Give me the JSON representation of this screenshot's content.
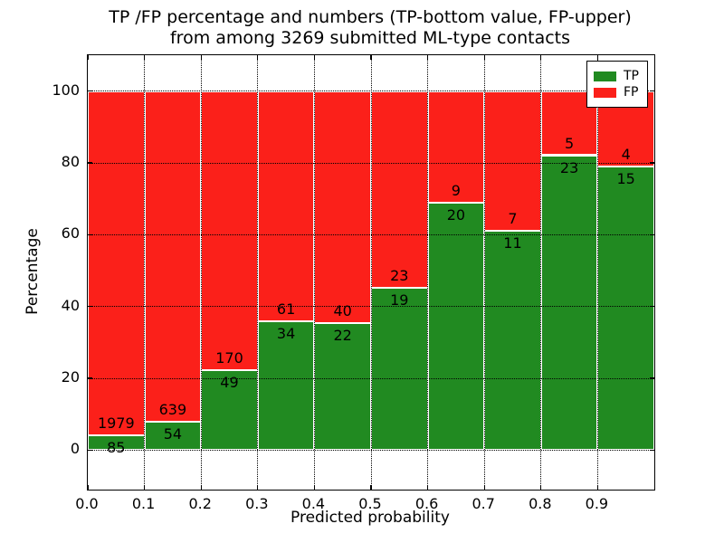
{
  "chart_data": {
    "type": "bar",
    "stacked": true,
    "title_lines": [
      "TP /FP percentage and numbers (TP-bottom value, FP-upper)",
      "from among 3269 submitted ML-type contacts"
    ],
    "total_contacts": 3269,
    "xlabel": "Predicted probability",
    "ylabel": "Percentage",
    "bins": [
      "0.0-0.1",
      "0.1-0.2",
      "0.2-0.3",
      "0.3-0.4",
      "0.4-0.5",
      "0.5-0.6",
      "0.6-0.7",
      "0.7-0.8",
      "0.8-0.9",
      "0.9-1.0"
    ],
    "series": [
      {
        "name": "TP",
        "color": "#218a21",
        "values": [
          85,
          54,
          49,
          34,
          22,
          19,
          20,
          11,
          23,
          15
        ]
      },
      {
        "name": "FP",
        "color": "#fb201a",
        "values": [
          1979,
          639,
          170,
          61,
          40,
          23,
          9,
          7,
          5,
          4
        ]
      }
    ],
    "tp_percentages": [
      4.1,
      7.8,
      22.4,
      35.8,
      35.5,
      45.2,
      69.0,
      61.1,
      82.1,
      78.9
    ],
    "bar_totals_percent": 100,
    "ylim": [
      -11,
      110
    ],
    "yticks": [
      0,
      20,
      40,
      60,
      80,
      100
    ],
    "xticks": [
      "0.0",
      "0.1",
      "0.2",
      "0.3",
      "0.4",
      "0.5",
      "0.6",
      "0.7",
      "0.8",
      "0.9"
    ],
    "grid": true,
    "grid_style": "dotted",
    "bar_edge_color": "#ffffff",
    "axis_color": "#000000",
    "legend": {
      "position": "upper right",
      "entries": [
        "TP",
        "FP"
      ]
    }
  }
}
